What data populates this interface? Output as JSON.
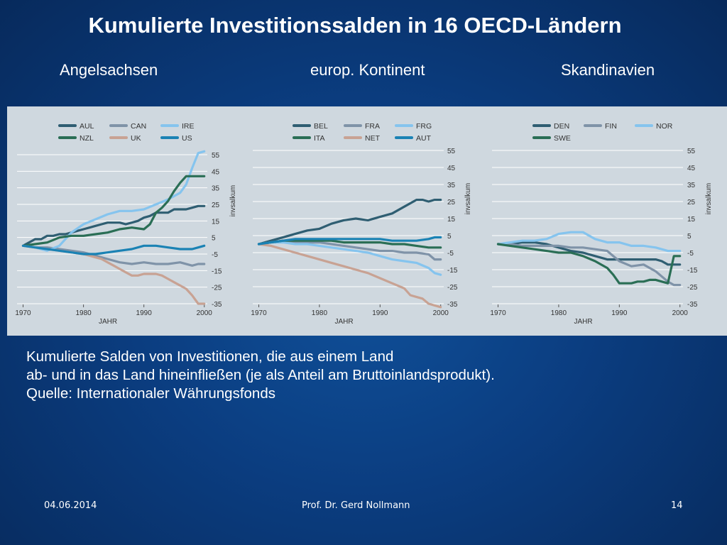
{
  "slide": {
    "title": "Kumulierte Investitionssalden in 16 OECD-Ländern",
    "subtitles": [
      "Angelsachsen",
      "europ. Kontinent",
      "Skandinavien"
    ],
    "caption": [
      "Kumulierte Salden von Investitionen, die aus einem Land",
      "ab- und in das Land hineinfließen (je als Anteil am Bruttoinlandsprodukt).",
      "Quelle: Internationaler Währungsfonds"
    ],
    "footer": {
      "date": "04.06.2014",
      "author": "Prof. Dr. Gerd Nollmann",
      "page": "14"
    }
  },
  "chart_data": [
    {
      "type": "line",
      "title": "",
      "xlabel": "JAHR",
      "ylabel": "invsalkum",
      "xticks": [
        1970,
        1980,
        1990,
        2000
      ],
      "yticks": [
        55,
        45,
        35,
        25,
        15,
        5,
        -5,
        -15,
        -25,
        -35
      ],
      "xlim": [
        1969,
        2000.5
      ],
      "ylim": [
        -35,
        55
      ],
      "legend_position": "top",
      "series": [
        {
          "name": "AUL",
          "color": "#2f5e72",
          "x": [
            1970,
            1971,
            1972,
            1973,
            1974,
            1975,
            1976,
            1977,
            1978,
            1979,
            1980,
            1981,
            1982,
            1983,
            1984,
            1985,
            1986,
            1987,
            1988,
            1989,
            1990,
            1991,
            1992,
            1993,
            1994,
            1995,
            1996,
            1997,
            1998,
            1999,
            2000
          ],
          "y": [
            0,
            2,
            4,
            4,
            6,
            6,
            7,
            7,
            8,
            9,
            10,
            11,
            12,
            13,
            14,
            14,
            14,
            13,
            14,
            15,
            17,
            18,
            20,
            20,
            20,
            22,
            22,
            22,
            23,
            24,
            24
          ]
        },
        {
          "name": "CAN",
          "color": "#7f93a8",
          "x": [
            1970,
            1972,
            1974,
            1976,
            1978,
            1980,
            1982,
            1984,
            1986,
            1988,
            1990,
            1992,
            1994,
            1996,
            1998,
            1999,
            2000
          ],
          "y": [
            0,
            -1,
            -1,
            -2,
            -3,
            -4,
            -6,
            -8,
            -10,
            -11,
            -10,
            -11,
            -11,
            -10,
            -12,
            -11,
            -11
          ]
        },
        {
          "name": "IRE",
          "color": "#85c4ee",
          "x": [
            1970,
            1972,
            1974,
            1976,
            1978,
            1980,
            1982,
            1984,
            1986,
            1988,
            1990,
            1992,
            1994,
            1996,
            1997,
            1998,
            1999,
            2000
          ],
          "y": [
            0,
            -1,
            -3,
            0,
            8,
            13,
            16,
            19,
            21,
            21,
            22,
            25,
            28,
            32,
            37,
            47,
            56,
            57
          ]
        },
        {
          "name": "NZL",
          "color": "#2a6e55",
          "x": [
            1970,
            1972,
            1974,
            1976,
            1978,
            1980,
            1982,
            1984,
            1986,
            1988,
            1990,
            1991,
            1992,
            1993,
            1994,
            1995,
            1996,
            1997,
            1998,
            1999,
            2000
          ],
          "y": [
            0,
            1,
            2,
            5,
            6,
            6,
            7,
            8,
            10,
            11,
            10,
            13,
            20,
            23,
            27,
            33,
            38,
            42,
            42,
            42,
            42
          ]
        },
        {
          "name": "UK",
          "color": "#c8a293",
          "x": [
            1970,
            1972,
            1974,
            1976,
            1978,
            1980,
            1981,
            1982,
            1983,
            1984,
            1985,
            1986,
            1987,
            1988,
            1989,
            1990,
            1991,
            1992,
            1993,
            1994,
            1995,
            1996,
            1997,
            1998,
            1999,
            2000
          ],
          "y": [
            0,
            -1,
            -2,
            -3,
            -4,
            -5,
            -6,
            -7,
            -8,
            -10,
            -12,
            -14,
            -16,
            -18,
            -18,
            -17,
            -17,
            -17,
            -18,
            -20,
            -22,
            -24,
            -26,
            -30,
            -35,
            -35
          ]
        },
        {
          "name": "US",
          "color": "#1a82b4",
          "x": [
            1970,
            1972,
            1974,
            1976,
            1978,
            1980,
            1982,
            1984,
            1986,
            1988,
            1990,
            1992,
            1994,
            1996,
            1998,
            1999,
            2000
          ],
          "y": [
            0,
            -1,
            -2,
            -3,
            -4,
            -5,
            -5,
            -4,
            -3,
            -2,
            0,
            0,
            -1,
            -2,
            -2,
            -1,
            0
          ]
        }
      ]
    },
    {
      "type": "line",
      "title": "",
      "xlabel": "JAHR",
      "ylabel": "invsalkum",
      "xticks": [
        1970,
        1980,
        1990,
        2000
      ],
      "yticks": [
        55,
        45,
        35,
        25,
        15,
        5,
        -5,
        -15,
        -25,
        -35
      ],
      "xlim": [
        1969,
        2000.5
      ],
      "ylim": [
        -35,
        55
      ],
      "legend_position": "top",
      "series": [
        {
          "name": "BEL",
          "color": "#2f5e72",
          "x": [
            1970,
            1972,
            1974,
            1976,
            1978,
            1980,
            1982,
            1984,
            1986,
            1988,
            1990,
            1992,
            1994,
            1996,
            1997,
            1998,
            1999,
            2000
          ],
          "y": [
            0,
            2,
            4,
            6,
            8,
            9,
            12,
            14,
            15,
            14,
            16,
            18,
            22,
            26,
            26,
            25,
            26,
            26
          ]
        },
        {
          "name": "FRA",
          "color": "#7f93a8",
          "x": [
            1970,
            1972,
            1974,
            1976,
            1978,
            1980,
            1982,
            1984,
            1986,
            1988,
            1990,
            1992,
            1994,
            1996,
            1998,
            1999,
            2000
          ],
          "y": [
            0,
            1,
            2,
            1,
            1,
            1,
            0,
            -1,
            -2,
            -3,
            -4,
            -4,
            -5,
            -5,
            -6,
            -9,
            -9
          ]
        },
        {
          "name": "FRG",
          "color": "#85c4ee",
          "x": [
            1970,
            1972,
            1974,
            1976,
            1978,
            1980,
            1982,
            1984,
            1986,
            1988,
            1990,
            1992,
            1994,
            1996,
            1998,
            1999,
            2000
          ],
          "y": [
            0,
            1,
            1,
            0,
            0,
            -1,
            -2,
            -3,
            -4,
            -5,
            -7,
            -9,
            -10,
            -11,
            -14,
            -17,
            -18
          ]
        },
        {
          "name": "ITA",
          "color": "#2a6e55",
          "x": [
            1970,
            1972,
            1974,
            1976,
            1978,
            1980,
            1982,
            1984,
            1986,
            1988,
            1990,
            1992,
            1994,
            1996,
            1998,
            2000
          ],
          "y": [
            0,
            1,
            2,
            2,
            2,
            2,
            2,
            1,
            1,
            1,
            1,
            0,
            0,
            -1,
            -2,
            -2
          ]
        },
        {
          "name": "NET",
          "color": "#c8a293",
          "x": [
            1970,
            1972,
            1974,
            1976,
            1978,
            1980,
            1982,
            1984,
            1986,
            1988,
            1990,
            1992,
            1994,
            1995,
            1996,
            1997,
            1998,
            1999,
            2000
          ],
          "y": [
            0,
            -1,
            -3,
            -5,
            -7,
            -9,
            -11,
            -13,
            -15,
            -17,
            -20,
            -23,
            -26,
            -30,
            -31,
            -32,
            -35,
            -36,
            -37
          ]
        },
        {
          "name": "AUT",
          "color": "#1a82b4",
          "x": [
            1970,
            1972,
            1974,
            1976,
            1978,
            1980,
            1982,
            1984,
            1986,
            1988,
            1990,
            1992,
            1994,
            1996,
            1998,
            1999,
            2000
          ],
          "y": [
            0,
            1,
            2,
            3,
            3,
            3,
            3,
            3,
            3,
            3,
            3,
            2,
            2,
            2,
            3,
            4,
            4
          ]
        }
      ]
    },
    {
      "type": "line",
      "title": "",
      "xlabel": "JAHR",
      "ylabel": "invsalkum",
      "xticks": [
        1970,
        1980,
        1990,
        2000
      ],
      "yticks": [
        55,
        45,
        35,
        25,
        15,
        5,
        -5,
        -15,
        -25,
        -35
      ],
      "xlim": [
        1969,
        2000.5
      ],
      "ylim": [
        -35,
        55
      ],
      "legend_position": "top",
      "series": [
        {
          "name": "DEN",
          "color": "#2f5e72",
          "x": [
            1970,
            1972,
            1974,
            1976,
            1978,
            1980,
            1982,
            1984,
            1986,
            1988,
            1990,
            1992,
            1994,
            1996,
            1997,
            1998,
            1999,
            2000
          ],
          "y": [
            0,
            0,
            1,
            1,
            0,
            -2,
            -4,
            -5,
            -7,
            -9,
            -9,
            -9,
            -9,
            -9,
            -10,
            -12,
            -12,
            -12
          ]
        },
        {
          "name": "FIN",
          "color": "#7f93a8",
          "x": [
            1970,
            1972,
            1974,
            1976,
            1978,
            1980,
            1982,
            1984,
            1986,
            1988,
            1990,
            1992,
            1994,
            1996,
            1998,
            1999,
            2000
          ],
          "y": [
            0,
            0,
            -1,
            -1,
            -1,
            -1,
            -2,
            -2,
            -3,
            -4,
            -10,
            -13,
            -12,
            -16,
            -22,
            -24,
            -24
          ]
        },
        {
          "name": "NOR",
          "color": "#85c4ee",
          "x": [
            1970,
            1972,
            1974,
            1976,
            1978,
            1980,
            1982,
            1984,
            1986,
            1988,
            1990,
            1992,
            1994,
            1996,
            1998,
            2000
          ],
          "y": [
            0,
            1,
            2,
            2,
            3,
            6,
            7,
            7,
            3,
            1,
            1,
            -1,
            -1,
            -2,
            -4,
            -4
          ]
        },
        {
          "name": "SWE",
          "color": "#2a6e55",
          "x": [
            1970,
            1972,
            1974,
            1976,
            1978,
            1980,
            1982,
            1984,
            1986,
            1988,
            1989,
            1990,
            1991,
            1992,
            1993,
            1994,
            1995,
            1996,
            1997,
            1998,
            1999,
            2000
          ],
          "y": [
            0,
            -1,
            -2,
            -3,
            -4,
            -5,
            -5,
            -7,
            -10,
            -14,
            -18,
            -23,
            -23,
            -23,
            -22,
            -22,
            -21,
            -21,
            -22,
            -23,
            -7,
            -7
          ]
        }
      ]
    }
  ]
}
